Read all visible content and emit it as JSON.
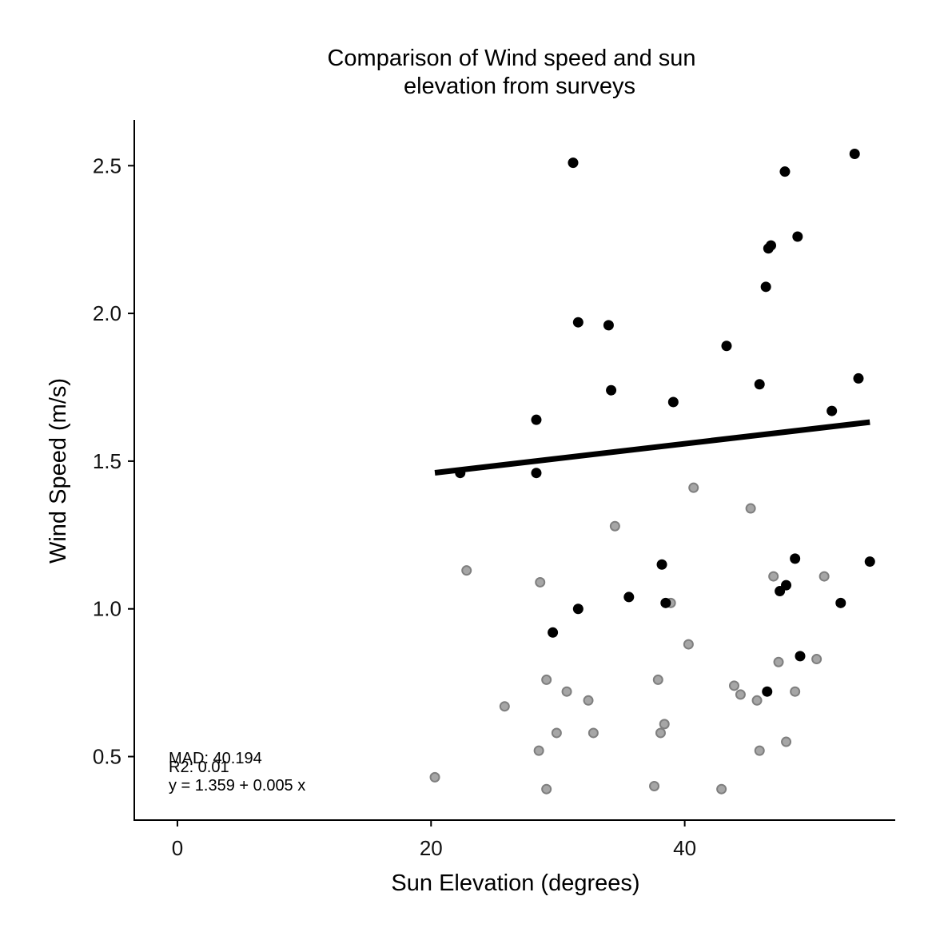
{
  "chart_data": {
    "type": "scatter",
    "title_lines": [
      "Comparison of Wind speed and sun",
      "elevation from surveys"
    ],
    "xlabel": "Sun Elevation (degrees)",
    "ylabel": "Wind Speed (m/s)",
    "xlim": [
      -3.4,
      56.6
    ],
    "ylim": [
      0.285,
      2.655
    ],
    "xticks": [
      0,
      20,
      40
    ],
    "yticks": [
      0.5,
      1.0,
      1.5,
      2.0,
      2.5
    ],
    "ytick_labels": [
      "0.5",
      "1.0",
      "1.5",
      "2.0",
      "2.5"
    ],
    "grid": false,
    "legend": "none",
    "colors": {
      "primary_points": "#000000",
      "secondary_points_fill": "#a6a6a6",
      "secondary_points_stroke": "#7f7f7f",
      "fit_line": "#000000"
    },
    "series": [
      {
        "role": "primary",
        "x": [
          31.2,
          53.4,
          47.9,
          48.9,
          46.8,
          46.6,
          46.4,
          31.6,
          34.0,
          43.3,
          53.7,
          45.9,
          34.2,
          39.1,
          51.6,
          28.3,
          22.3,
          28.3,
          38.2,
          48.7,
          54.6,
          48.0,
          47.5,
          35.6,
          38.5,
          52.3,
          31.6,
          29.6,
          49.1,
          46.5
        ],
        "y": [
          2.51,
          2.54,
          2.48,
          2.26,
          2.23,
          2.22,
          2.09,
          1.97,
          1.96,
          1.89,
          1.78,
          1.76,
          1.74,
          1.7,
          1.67,
          1.64,
          1.46,
          1.46,
          1.15,
          1.17,
          1.16,
          1.08,
          1.06,
          1.04,
          1.02,
          1.02,
          1.0,
          0.92,
          0.84,
          0.72
        ]
      },
      {
        "role": "secondary",
        "x": [
          40.7,
          45.2,
          34.5,
          22.8,
          28.6,
          47.0,
          51.0,
          38.9,
          40.3,
          47.4,
          50.4,
          29.1,
          37.9,
          43.9,
          30.7,
          44.4,
          48.7,
          25.8,
          32.4,
          45.7,
          38.4,
          29.9,
          32.8,
          38.1,
          48.0,
          28.5,
          45.9,
          20.3,
          37.6,
          29.1,
          42.9
        ],
        "y": [
          1.41,
          1.34,
          1.28,
          1.13,
          1.09,
          1.11,
          1.11,
          1.02,
          0.88,
          0.82,
          0.83,
          0.76,
          0.76,
          0.74,
          0.72,
          0.71,
          0.72,
          0.67,
          0.69,
          0.69,
          0.61,
          0.58,
          0.58,
          0.58,
          0.55,
          0.52,
          0.52,
          0.43,
          0.4,
          0.39,
          0.39
        ]
      }
    ],
    "fit": {
      "intercept": 1.359,
      "slope": 0.005,
      "x_range": [
        20.3,
        54.6
      ]
    },
    "annotations": [
      "MAD: 40.194",
      "R2: 0.01",
      "y =  1.359 + 0.005 x"
    ]
  }
}
